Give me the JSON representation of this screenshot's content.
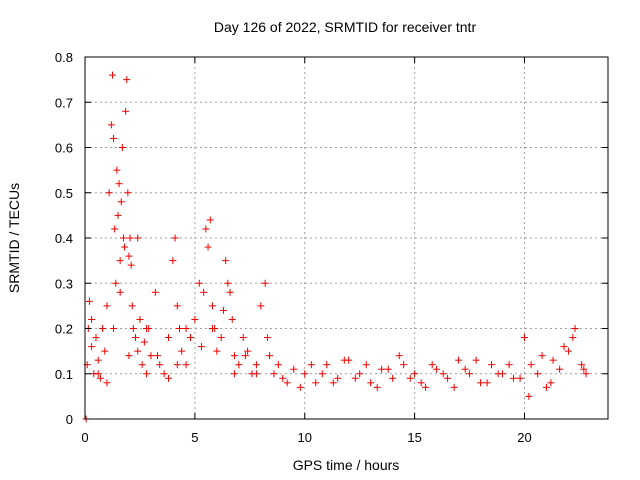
{
  "chart_data": {
    "type": "scatter",
    "title": "Day 126 of 2022, SRMTID for receiver tntr",
    "xlabel": "GPS time / hours",
    "ylabel": "SRMTID / TECUs",
    "xlim": [
      0,
      23.8
    ],
    "ylim": [
      0,
      0.8
    ],
    "xticks": [
      0,
      5,
      10,
      15,
      20
    ],
    "yticks": [
      0,
      0.1,
      0.2,
      0.3,
      0.4,
      0.5,
      0.6,
      0.7,
      0.8
    ],
    "xtick_labels": [
      "0",
      "5",
      "10",
      "15",
      "20"
    ],
    "ytick_labels": [
      "0",
      "0.1",
      "0.2",
      "0.3",
      "0.4",
      "0.5",
      "0.6",
      "0.7",
      "0.8"
    ],
    "grid": true,
    "marker": "+",
    "marker_color": "#ee0000",
    "series": [
      {
        "name": "SRMTID",
        "x": [
          0.05,
          0.1,
          0.15,
          0.2,
          0.3,
          0.4,
          0.5,
          0.6,
          0.7,
          0.8,
          0.9,
          1.0,
          1.1,
          1.2,
          1.25,
          1.3,
          1.35,
          1.4,
          1.45,
          1.5,
          1.55,
          1.6,
          1.65,
          1.7,
          1.75,
          1.8,
          1.85,
          1.9,
          1.95,
          2.0,
          2.05,
          2.1,
          2.15,
          2.2,
          2.3,
          2.4,
          2.5,
          2.6,
          2.7,
          2.8,
          2.9,
          3.0,
          3.2,
          3.4,
          3.6,
          3.8,
          4.0,
          4.1,
          4.2,
          4.3,
          4.4,
          4.6,
          4.8,
          5.0,
          5.2,
          5.4,
          5.5,
          5.6,
          5.7,
          5.8,
          5.9,
          6.0,
          6.2,
          6.4,
          6.5,
          6.6,
          6.7,
          6.8,
          7.0,
          7.2,
          7.4,
          7.6,
          7.8,
          8.0,
          8.2,
          8.4,
          8.6,
          8.8,
          9.0,
          9.5,
          10.0,
          10.5,
          11.0,
          11.5,
          12.0,
          12.5,
          13.0,
          13.5,
          14.0,
          14.5,
          15.0,
          15.5,
          16.0,
          16.5,
          17.0,
          17.5,
          18.0,
          18.5,
          19.0,
          19.5,
          20.0,
          20.3,
          20.6,
          21.0,
          21.3,
          21.6,
          22.0,
          22.3,
          22.6,
          22.8,
          0.3,
          0.6,
          1.0,
          1.3,
          1.6,
          2.0,
          2.4,
          2.8,
          3.3,
          3.8,
          4.2,
          4.6,
          5.3,
          5.8,
          6.3,
          6.8,
          7.3,
          7.8,
          8.3,
          9.2,
          9.8,
          10.3,
          10.8,
          11.3,
          11.8,
          12.3,
          12.8,
          13.3,
          13.8,
          14.3,
          14.8,
          15.3,
          15.8,
          16.3,
          16.8,
          17.3,
          17.8,
          18.3,
          18.8,
          19.3,
          19.8,
          20.2,
          20.8,
          21.2,
          21.8,
          22.2,
          22.7
        ],
        "y": [
          0.0,
          0.12,
          0.2,
          0.26,
          0.16,
          0.1,
          0.18,
          0.13,
          0.09,
          0.2,
          0.15,
          0.25,
          0.5,
          0.65,
          0.76,
          0.62,
          0.42,
          0.3,
          0.55,
          0.45,
          0.52,
          0.35,
          0.48,
          0.6,
          0.4,
          0.38,
          0.68,
          0.75,
          0.5,
          0.36,
          0.4,
          0.34,
          0.25,
          0.2,
          0.18,
          0.15,
          0.22,
          0.12,
          0.17,
          0.1,
          0.2,
          0.14,
          0.28,
          0.12,
          0.1,
          0.18,
          0.35,
          0.4,
          0.25,
          0.2,
          0.15,
          0.12,
          0.18,
          0.22,
          0.3,
          0.28,
          0.42,
          0.38,
          0.44,
          0.25,
          0.2,
          0.15,
          0.18,
          0.35,
          0.3,
          0.28,
          0.22,
          0.14,
          0.12,
          0.18,
          0.15,
          0.1,
          0.12,
          0.25,
          0.3,
          0.14,
          0.1,
          0.12,
          0.09,
          0.11,
          0.1,
          0.08,
          0.12,
          0.09,
          0.13,
          0.1,
          0.08,
          0.11,
          0.09,
          0.12,
          0.1,
          0.07,
          0.11,
          0.09,
          0.13,
          0.1,
          0.08,
          0.12,
          0.1,
          0.09,
          0.18,
          0.12,
          0.1,
          0.07,
          0.13,
          0.11,
          0.15,
          0.2,
          0.12,
          0.1,
          0.22,
          0.1,
          0.08,
          0.2,
          0.28,
          0.14,
          0.4,
          0.2,
          0.14,
          0.09,
          0.12,
          0.2,
          0.16,
          0.2,
          0.24,
          0.1,
          0.14,
          0.1,
          0.18,
          0.08,
          0.07,
          0.12,
          0.1,
          0.08,
          0.13,
          0.09,
          0.12,
          0.07,
          0.11,
          0.14,
          0.09,
          0.08,
          0.12,
          0.1,
          0.07,
          0.11,
          0.13,
          0.08,
          0.1,
          0.12,
          0.09,
          0.05,
          0.14,
          0.08,
          0.16,
          0.18,
          0.11
        ]
      }
    ]
  }
}
